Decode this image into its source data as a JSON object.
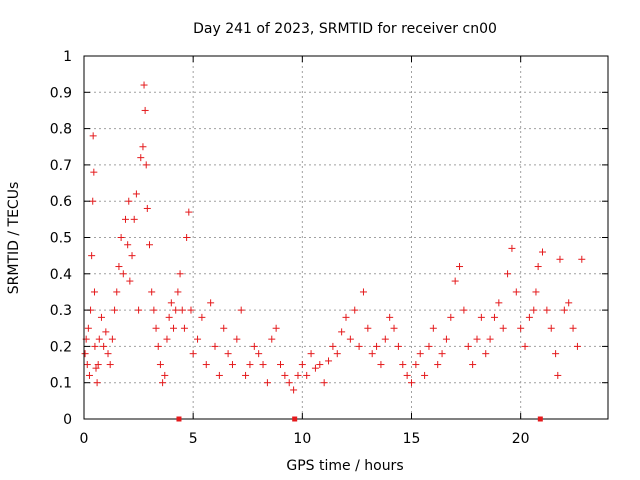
{
  "chart_data": {
    "type": "scatter",
    "title": "Day 241 of 2023, SRMTID for receiver cn00",
    "xlabel": "GPS time / hours",
    "ylabel": "SRMTID / TECUs",
    "xlim": [
      0,
      24
    ],
    "ylim": [
      0,
      1
    ],
    "x_ticks": [
      "0",
      "5",
      "10",
      "15",
      "20"
    ],
    "y_ticks": [
      "0",
      "0.1",
      "0.2",
      "0.3",
      "0.4",
      "0.5",
      "0.6",
      "0.7",
      "0.8",
      "0.9",
      "1"
    ],
    "grid": true,
    "marker": "plus",
    "color": "#e41a1c",
    "gap_markers_x": [
      4.35,
      9.65,
      20.9
    ],
    "series": [
      {
        "name": "SRMTID",
        "x": [
          0.05,
          0.1,
          0.15,
          0.2,
          0.25,
          0.3,
          0.35,
          0.4,
          0.42,
          0.45,
          0.48,
          0.5,
          0.55,
          0.6,
          0.65,
          0.7,
          0.8,
          0.9,
          1.0,
          1.1,
          1.2,
          1.3,
          1.4,
          1.5,
          1.6,
          1.7,
          1.8,
          1.9,
          2.0,
          2.05,
          2.1,
          2.2,
          2.3,
          2.4,
          2.5,
          2.6,
          2.7,
          2.75,
          2.8,
          2.85,
          2.9,
          3.0,
          3.1,
          3.2,
          3.3,
          3.4,
          3.5,
          3.6,
          3.7,
          3.8,
          3.9,
          4.0,
          4.1,
          4.2,
          4.3,
          4.4,
          4.5,
          4.6,
          4.7,
          4.8,
          4.9,
          5.0,
          5.2,
          5.4,
          5.6,
          5.8,
          6.0,
          6.2,
          6.4,
          6.6,
          6.8,
          7.0,
          7.2,
          7.4,
          7.6,
          7.8,
          8.0,
          8.2,
          8.4,
          8.6,
          8.8,
          9.0,
          9.2,
          9.4,
          9.6,
          9.8,
          10.0,
          10.2,
          10.4,
          10.6,
          10.8,
          11.0,
          11.2,
          11.4,
          11.6,
          11.8,
          12.0,
          12.2,
          12.4,
          12.6,
          12.8,
          13.0,
          13.2,
          13.4,
          13.6,
          13.8,
          14.0,
          14.2,
          14.4,
          14.6,
          14.8,
          15.0,
          15.2,
          15.4,
          15.6,
          15.8,
          16.0,
          16.2,
          16.4,
          16.6,
          16.8,
          17.0,
          17.2,
          17.4,
          17.6,
          17.8,
          18.0,
          18.2,
          18.4,
          18.6,
          18.8,
          19.0,
          19.2,
          19.4,
          19.6,
          19.8,
          20.0,
          20.2,
          20.4,
          20.6,
          20.7,
          20.8,
          21.0,
          21.2,
          21.4,
          21.6,
          21.7,
          21.8,
          22.0,
          22.2,
          22.4,
          22.6,
          22.8
        ],
        "y": [
          0.18,
          0.22,
          0.15,
          0.25,
          0.12,
          0.3,
          0.45,
          0.6,
          0.78,
          0.68,
          0.35,
          0.2,
          0.14,
          0.1,
          0.15,
          0.22,
          0.28,
          0.2,
          0.24,
          0.18,
          0.15,
          0.22,
          0.3,
          0.35,
          0.42,
          0.5,
          0.4,
          0.55,
          0.48,
          0.6,
          0.38,
          0.45,
          0.55,
          0.62,
          0.3,
          0.72,
          0.75,
          0.92,
          0.85,
          0.7,
          0.58,
          0.48,
          0.35,
          0.3,
          0.25,
          0.2,
          0.15,
          0.1,
          0.12,
          0.22,
          0.28,
          0.32,
          0.25,
          0.3,
          0.35,
          0.4,
          0.3,
          0.25,
          0.5,
          0.57,
          0.3,
          0.18,
          0.22,
          0.28,
          0.15,
          0.32,
          0.2,
          0.12,
          0.25,
          0.18,
          0.15,
          0.22,
          0.3,
          0.12,
          0.15,
          0.2,
          0.18,
          0.15,
          0.1,
          0.22,
          0.25,
          0.15,
          0.12,
          0.1,
          0.08,
          0.12,
          0.15,
          0.12,
          0.18,
          0.14,
          0.15,
          0.1,
          0.16,
          0.2,
          0.18,
          0.24,
          0.28,
          0.22,
          0.3,
          0.2,
          0.35,
          0.25,
          0.18,
          0.2,
          0.15,
          0.22,
          0.28,
          0.25,
          0.2,
          0.15,
          0.12,
          0.1,
          0.15,
          0.18,
          0.12,
          0.2,
          0.25,
          0.15,
          0.18,
          0.22,
          0.28,
          0.38,
          0.42,
          0.3,
          0.2,
          0.15,
          0.22,
          0.28,
          0.18,
          0.22,
          0.28,
          0.32,
          0.25,
          0.4,
          0.47,
          0.35,
          0.25,
          0.2,
          0.28,
          0.3,
          0.35,
          0.42,
          0.46,
          0.3,
          0.25,
          0.18,
          0.12,
          0.44,
          0.3,
          0.32,
          0.25,
          0.2,
          0.44
        ]
      }
    ]
  }
}
